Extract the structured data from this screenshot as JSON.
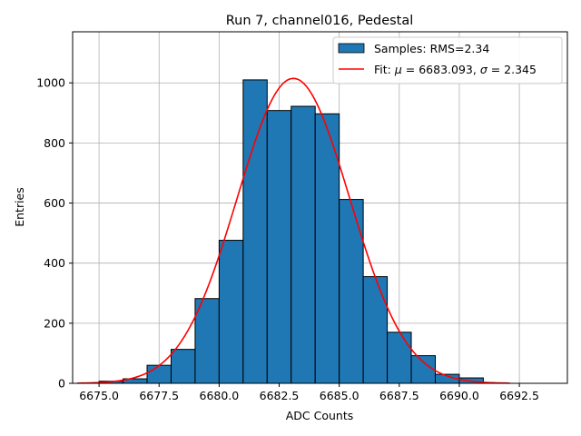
{
  "chart_data": {
    "type": "bar",
    "title": "Run 7, channel016, Pedestal",
    "xlabel": "ADC Counts",
    "ylabel": "Entries",
    "xlim": [
      6673.9,
      6694.5
    ],
    "ylim": [
      0,
      1170
    ],
    "xticks": [
      6675.0,
      6677.5,
      6680.0,
      6682.5,
      6685.0,
      6687.5,
      6690.0,
      6692.5
    ],
    "xtick_labels": [
      "6675.0",
      "6677.5",
      "6680.0",
      "6682.5",
      "6685.0",
      "6687.5",
      "6690.0",
      "6692.5"
    ],
    "yticks": [
      0,
      200,
      400,
      600,
      800,
      1000
    ],
    "ytick_labels": [
      "0",
      "200",
      "400",
      "600",
      "800",
      "1000"
    ],
    "grid": true,
    "legend_position": "upper-right",
    "bars": {
      "name": "Samples: RMS=2.34",
      "color": "#1f77b4",
      "edge_color": "#000000",
      "bin_edges": [
        6675.0,
        6676.0,
        6677.0,
        6678.0,
        6679.0,
        6680.0,
        6681.0,
        6682.0,
        6683.0,
        6684.0,
        6685.0,
        6686.0,
        6687.0,
        6688.0,
        6689.0,
        6690.0,
        6691.0
      ],
      "counts": [
        7,
        15,
        60,
        113,
        282,
        476,
        1010,
        908,
        922,
        897,
        612,
        355,
        170,
        92,
        30,
        18
      ]
    },
    "fit": {
      "name_prefix": "Fit: ",
      "name_mu": "μ",
      "name_mid": " = 6683.093, ",
      "name_sigma": "σ",
      "name_suffix": " = 2.345",
      "color": "#ff0000",
      "mu": 6683.093,
      "sigma": 2.345,
      "amplitude": 1015,
      "x_range": [
        6674.1,
        6692.1
      ]
    }
  }
}
